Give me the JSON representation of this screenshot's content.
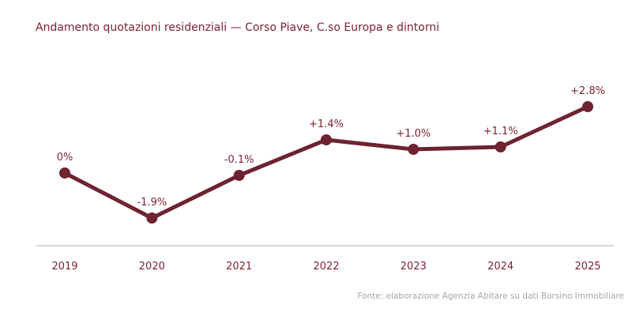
{
  "title": "Andamento quotazioni residenziali — Corso Piave, C.so Europa e dintorni",
  "source": "Fonte: elaborazione Agenzia Abitare su dati Borsino Immobiliare",
  "colors": {
    "line": "#6e2331",
    "marker": "#6e2331",
    "label_text": "#7d2230",
    "tick_text": "#7d2230",
    "title_text": "#7d2230",
    "axis_line": "#cccccc",
    "source_text": "#a6a6a6",
    "background": "#ffffff"
  },
  "chart_data": {
    "type": "line",
    "categories": [
      "2019",
      "2020",
      "2021",
      "2022",
      "2023",
      "2024",
      "2025"
    ],
    "values": [
      0,
      -1.9,
      -0.1,
      1.4,
      1.0,
      1.1,
      2.8
    ],
    "point_labels": [
      "0%",
      "-1.9%",
      "-0.1%",
      "+1.4%",
      "+1.0%",
      "+1.1%",
      "+2.8%"
    ],
    "title": "Andamento quotazioni residenziali — Corso Piave, C.so Europa e dintorni",
    "xlabel": "",
    "ylabel": "",
    "unit": "%",
    "ylim": [
      -3.1,
      4.2
    ],
    "grid": false,
    "legend": false,
    "markers": true,
    "annotation_position": "above-points"
  }
}
